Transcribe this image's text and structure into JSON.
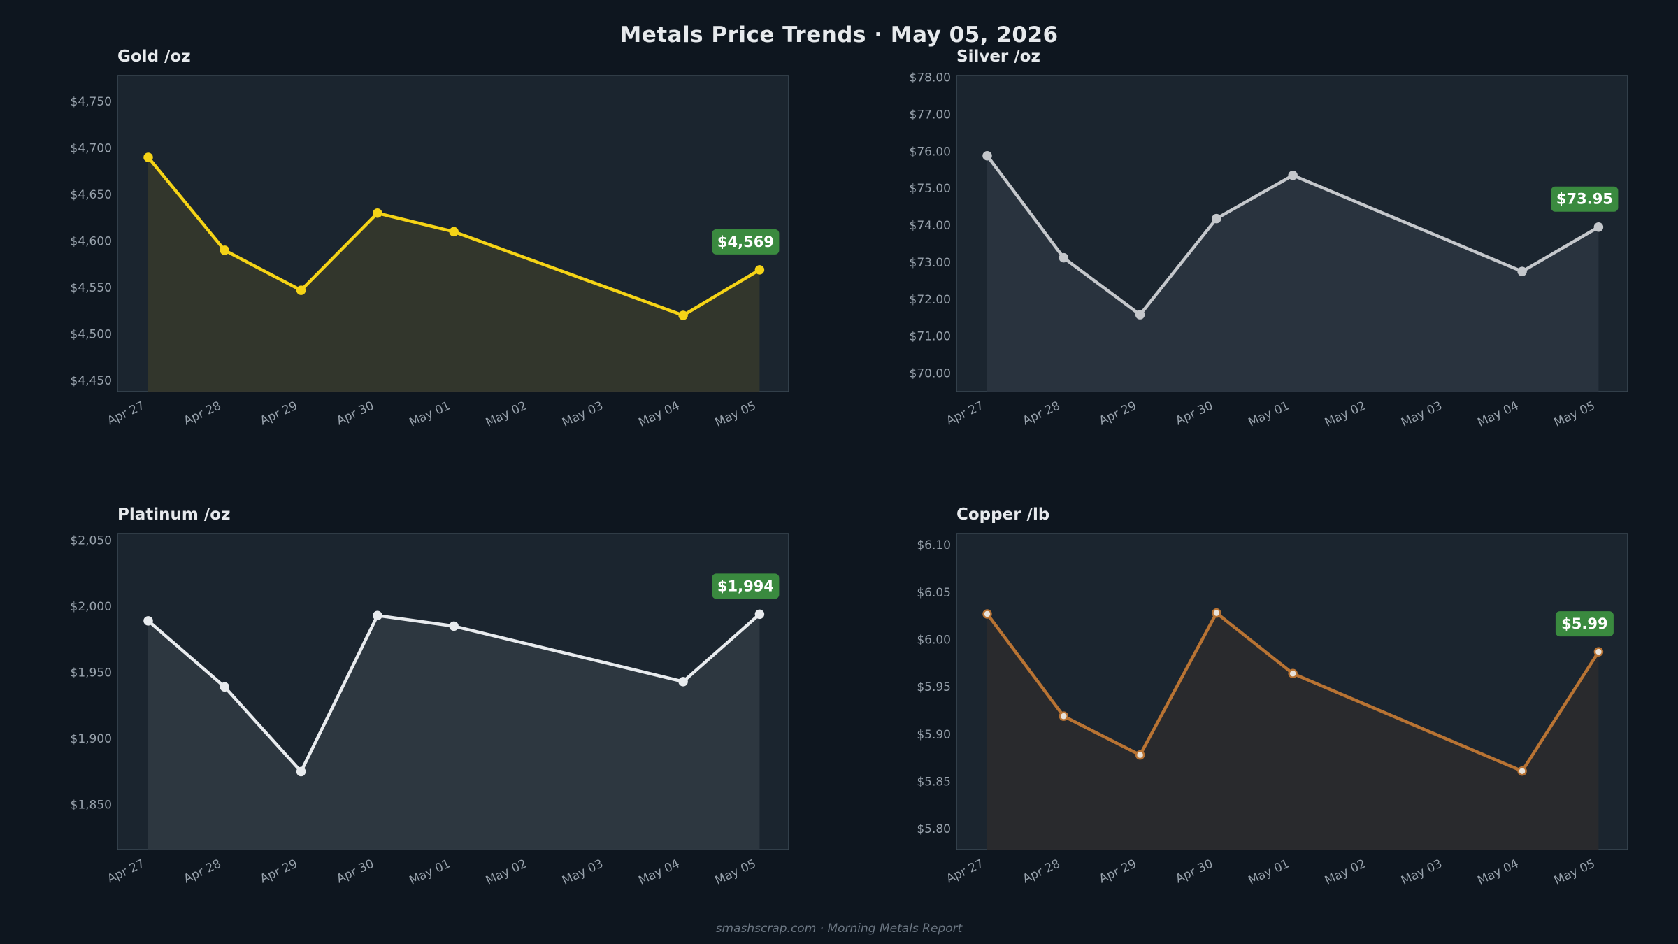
{
  "header": {
    "title": "Metals Price Trends  ·  May 05, 2026"
  },
  "footer": {
    "text": "smashscrap.com  ·  Morning Metals Report"
  },
  "chart_data": [
    {
      "id": "gold",
      "type": "line",
      "title": "Gold  /oz",
      "color": "#f5d316",
      "fill": "#34372c",
      "marker_fill": "#f5d316",
      "x": [
        "Apr 27",
        "Apr 28",
        "Apr 29",
        "Apr 30",
        "May 01",
        "May 02",
        "May 03",
        "May 04",
        "May 05"
      ],
      "points": [
        {
          "x": "Apr 27",
          "y": 4690
        },
        {
          "x": "Apr 28",
          "y": 4590
        },
        {
          "x": "Apr 29",
          "y": 4547
        },
        {
          "x": "Apr 30",
          "y": 4630
        },
        {
          "x": "May 01",
          "y": 4610
        },
        {
          "x": "May 04",
          "y": 4520
        },
        {
          "x": "May 05",
          "y": 4569
        }
      ],
      "ylim": [
        4438,
        4778
      ],
      "yticks": [
        4450,
        4500,
        4550,
        4600,
        4650,
        4700,
        4750
      ],
      "ytick_labels": [
        "$4,450",
        "$4,500",
        "$4,550",
        "$4,600",
        "$4,650",
        "$4,700",
        "$4,750"
      ],
      "badge": "$4,569",
      "badge_color": "#3a8a3f"
    },
    {
      "id": "silver",
      "type": "line",
      "title": "Silver  /oz",
      "color": "#c4c7cb",
      "fill": "#2a343f",
      "marker_fill": "#c4c7cb",
      "x": [
        "Apr 27",
        "Apr 28",
        "Apr 29",
        "Apr 30",
        "May 01",
        "May 02",
        "May 03",
        "May 04",
        "May 05"
      ],
      "points": [
        {
          "x": "Apr 27",
          "y": 75.88
        },
        {
          "x": "Apr 28",
          "y": 73.12
        },
        {
          "x": "Apr 29",
          "y": 71.58
        },
        {
          "x": "Apr 30",
          "y": 74.18
        },
        {
          "x": "May 01",
          "y": 75.35
        },
        {
          "x": "May 04",
          "y": 72.75
        },
        {
          "x": "May 05",
          "y": 73.95
        }
      ],
      "ylim": [
        69.5,
        78.05
      ],
      "yticks": [
        70,
        71,
        72,
        73,
        74,
        75,
        76,
        77,
        78
      ],
      "ytick_labels": [
        "$70.00",
        "$71.00",
        "$72.00",
        "$73.00",
        "$74.00",
        "$75.00",
        "$76.00",
        "$77.00",
        "$78.00"
      ],
      "badge": "$73.95",
      "badge_color": "#3a8a3f"
    },
    {
      "id": "platinum",
      "type": "line",
      "title": "Platinum  /oz",
      "color": "#e8ebee",
      "fill": "#2e3841",
      "marker_fill": "#e8ebee",
      "x": [
        "Apr 27",
        "Apr 28",
        "Apr 29",
        "Apr 30",
        "May 01",
        "May 02",
        "May 03",
        "May 04",
        "May 05"
      ],
      "points": [
        {
          "x": "Apr 27",
          "y": 1989
        },
        {
          "x": "Apr 28",
          "y": 1939
        },
        {
          "x": "Apr 29",
          "y": 1875
        },
        {
          "x": "Apr 30",
          "y": 1993
        },
        {
          "x": "May 01",
          "y": 1985
        },
        {
          "x": "May 04",
          "y": 1943
        },
        {
          "x": "May 05",
          "y": 1994
        }
      ],
      "ylim": [
        1816,
        2055
      ],
      "yticks": [
        1850,
        1900,
        1950,
        2000,
        2050
      ],
      "ytick_labels": [
        "$1,850",
        "$1,900",
        "$1,950",
        "$2,000",
        "$2,050"
      ],
      "badge": "$1,994",
      "badge_color": "#3a8a3f"
    },
    {
      "id": "copper",
      "type": "line",
      "title": "Copper  /lb",
      "color": "#b87333",
      "fill": "#2a2a2d",
      "marker_fill": "#e8e2da",
      "x": [
        "Apr 27",
        "Apr 28",
        "Apr 29",
        "Apr 30",
        "May 01",
        "May 02",
        "May 03",
        "May 04",
        "May 05"
      ],
      "points": [
        {
          "x": "Apr 27",
          "y": 6.027
        },
        {
          "x": "Apr 28",
          "y": 5.919
        },
        {
          "x": "Apr 29",
          "y": 5.878
        },
        {
          "x": "Apr 30",
          "y": 6.028
        },
        {
          "x": "May 01",
          "y": 5.964
        },
        {
          "x": "May 04",
          "y": 5.861
        },
        {
          "x": "May 05",
          "y": 5.987
        }
      ],
      "ylim": [
        5.778,
        6.112
      ],
      "yticks": [
        5.8,
        5.85,
        5.9,
        5.95,
        6.0,
        6.05,
        6.1
      ],
      "ytick_labels": [
        "$5.80",
        "$5.85",
        "$5.90",
        "$5.95",
        "$6.00",
        "$6.05",
        "$6.10"
      ],
      "badge": "$5.99",
      "badge_color": "#3a8a3f"
    }
  ]
}
